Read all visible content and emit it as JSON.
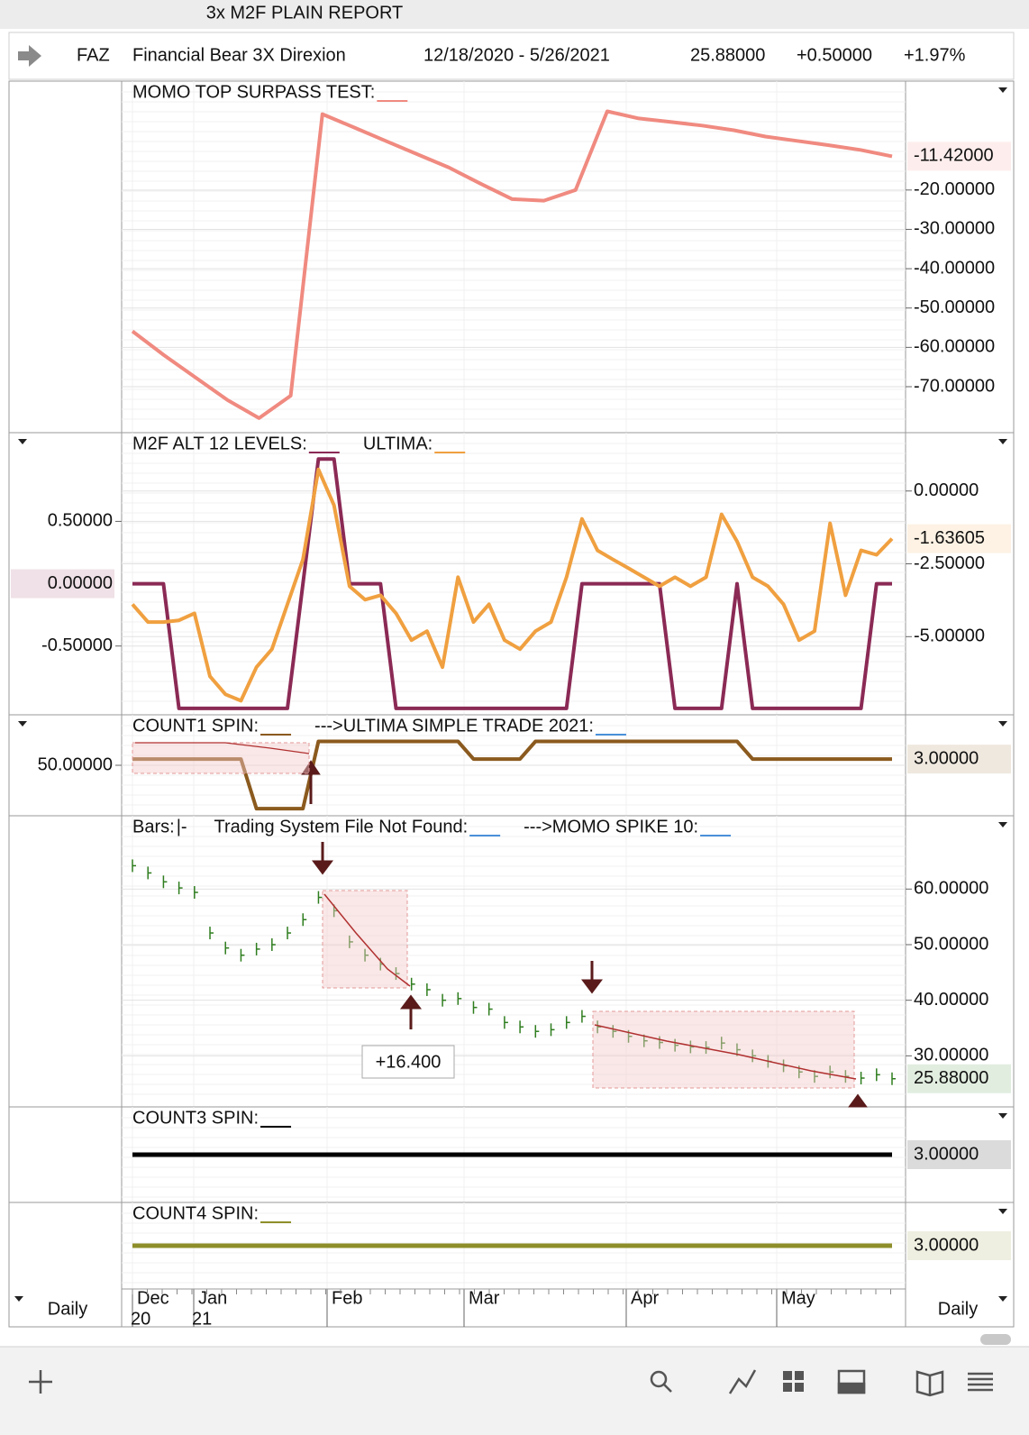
{
  "window_title": "3x M2F PLAIN REPORT",
  "header": {
    "symbol": "FAZ",
    "name": "Financial Bear 3X Direxion",
    "date_range": "12/18/2020 - 5/26/2021",
    "last": "25.88000",
    "change": "+0.50000",
    "change_pct": "+1.97%"
  },
  "panels": [
    {
      "right_lim": [
        -81,
        7
      ],
      "right_ticks": [
        {
          "value": -20,
          "label": "-20.00000"
        },
        {
          "value": -30,
          "label": "-30.00000"
        },
        {
          "value": -40,
          "label": "-40.00000"
        },
        {
          "value": -50,
          "label": "-50.00000"
        },
        {
          "value": -60,
          "label": "-60.00000"
        },
        {
          "value": -70,
          "label": "-70.00000"
        }
      ],
      "current_right": {
        "value": -11.42,
        "label": "-11.42000"
      },
      "series": [
        {
          "name": "MOMO TOP SURPASS TEST:",
          "color": "#f08a80",
          "axis": "right",
          "values": [
            -55.9,
            -62,
            -67.7,
            -73.4,
            -78,
            -72.3,
            -0.7,
            -4.1,
            -7.5,
            -10.9,
            -14.3,
            -18.4,
            -22.3,
            -22.7,
            -20,
            0,
            -1.8,
            -2.7,
            -3.6,
            -4.8,
            -6.4,
            -7.5,
            -8.6,
            -9.8,
            -11.42
          ]
        }
      ]
    },
    {
      "left_lim": [
        -1.03,
        1.19
      ],
      "left_ticks": [
        {
          "value": 0.5,
          "label": "0.50000"
        },
        {
          "value": -0.5,
          "label": "-0.50000"
        }
      ],
      "current_left": {
        "value": 0,
        "label": "0.00000"
      },
      "right_lim": [
        -7.59,
        1.91
      ],
      "right_ticks": [
        {
          "value": 0,
          "label": "0.00000"
        },
        {
          "value": -2.5,
          "label": "-2.50000"
        },
        {
          "value": -5,
          "label": "-5.00000"
        }
      ],
      "current_right": {
        "value": -1.63605,
        "label": "-1.63605"
      },
      "series": [
        {
          "name": "M2F ALT 12 LEVELS:",
          "color": "#8b2a55",
          "axis": "left",
          "values": [
            0,
            0,
            0,
            -1,
            -1,
            -1,
            -1,
            -1,
            -1,
            -1,
            -1,
            0,
            1,
            1,
            0,
            0,
            0,
            -1,
            -1,
            -1,
            -1,
            -1,
            -1,
            -1,
            -1,
            -1,
            -1,
            -1,
            -1,
            0,
            0,
            0,
            0,
            0,
            0,
            -1,
            -1,
            -1,
            -1,
            0,
            -1,
            -1,
            -1,
            -1,
            -1,
            -1,
            -1,
            -1,
            0,
            0
          ]
        },
        {
          "name": "ULTIMA:",
          "color": "#f0a040",
          "axis": "right",
          "values": [
            -3.89,
            -4.5,
            -4.5,
            -4.44,
            -4.2,
            -6.36,
            -6.98,
            -7.2,
            -6.05,
            -5.43,
            -3.89,
            -2.35,
            0.74,
            -0.49,
            -3.27,
            -3.73,
            -3.58,
            -4.2,
            -5.12,
            -4.81,
            -6.05,
            -2.96,
            -4.5,
            -3.89,
            -5.12,
            -5.43,
            -4.81,
            -4.5,
            -2.96,
            -0.96,
            -2.04,
            -2.35,
            -2.65,
            -2.96,
            -3.27,
            -2.96,
            -3.27,
            -2.96,
            -0.8,
            -1.73,
            -2.96,
            -3.27,
            -3.89,
            -5.12,
            -4.81,
            -1.11,
            -3.58,
            -2.04,
            -2.19,
            -1.63605
          ]
        }
      ]
    },
    {
      "left_lim": [
        0,
        100
      ],
      "left_ticks": [
        {
          "value": 50,
          "label": "50.00000"
        }
      ],
      "right_lim": [
        -0.05,
        5.35
      ],
      "current_right": {
        "value": 3,
        "label": "3.00000"
      },
      "series": [
        {
          "name": "COUNT1 SPIN:",
          "color": "#8b5a1e",
          "axis": "right",
          "values": [
            3,
            3,
            3,
            3,
            3,
            3,
            3,
            3,
            0.2,
            0.2,
            0.2,
            0.2,
            4,
            4,
            4,
            4,
            4,
            4,
            4,
            4,
            4,
            4,
            3,
            3,
            3,
            3,
            4,
            4,
            4,
            4,
            4,
            4,
            4,
            4,
            4,
            4,
            4,
            4,
            4,
            4,
            3,
            3,
            3,
            3,
            3,
            3,
            3,
            3,
            3,
            3
          ]
        },
        {
          "name": "--->ULTIMA  SIMPLE TRADE 2021:",
          "color": "#4a90d9"
        }
      ]
    },
    {
      "right_lim": [
        21.3,
        72.7
      ],
      "right_ticks": [
        {
          "value": 60,
          "label": "60.00000"
        },
        {
          "value": 50,
          "label": "50.00000"
        },
        {
          "value": 40,
          "label": "40.00000"
        },
        {
          "value": 30,
          "label": "30.00000"
        }
      ],
      "current_right": {
        "value": 25.88,
        "label": "25.88000"
      },
      "annotation": "+16.400",
      "series": [
        {
          "name": "Bars:",
          "symbol": "|-",
          "color": "#2e7d1e",
          "axis": "right",
          "style": "bars",
          "values": [
            64.2,
            62.9,
            61.3,
            60.2,
            59.4,
            52.1,
            49.4,
            48.1,
            49.2,
            50,
            52.1,
            54.5,
            58.5,
            56.1,
            50.5,
            48.1,
            46.5,
            44.8,
            42.9,
            41.9,
            40,
            40.3,
            38.7,
            38.4,
            36,
            35.2,
            34.4,
            34.7,
            36,
            37.1,
            35.2,
            34.4,
            33.5,
            32.7,
            32.4,
            31.9,
            31.6,
            31.5,
            32.3,
            31.1,
            30,
            29,
            28.2,
            27.1,
            26.3,
            27.1,
            26.3,
            26,
            26.6,
            25.88
          ]
        },
        {
          "name": "Trading System File Not Found:",
          "color": "#4a90d9"
        },
        {
          "name": "--->MOMO SPIKE 10:",
          "color": "#4a90d9"
        }
      ]
    },
    {
      "right_lim": [
        2,
        4
      ],
      "current_right": {
        "value": 3,
        "label": "3.00000"
      },
      "series": [
        {
          "name": "COUNT3 SPIN:",
          "color": "#000000",
          "axis": "right",
          "values": [
            3,
            3
          ]
        }
      ]
    },
    {
      "right_lim": [
        2,
        4
      ],
      "current_right": {
        "value": 3,
        "label": "3.00000"
      },
      "series": [
        {
          "name": "COUNT4 SPIN:",
          "color": "#8e8e2a",
          "axis": "right",
          "values": [
            3,
            3
          ]
        }
      ]
    }
  ],
  "x_axis": {
    "months": [
      "Dec",
      "Jan",
      "Feb",
      "Mar",
      "Apr",
      "May"
    ],
    "years": [
      "20",
      "21"
    ]
  },
  "footer": {
    "period_left": "Daily",
    "period_right": "Daily"
  }
}
